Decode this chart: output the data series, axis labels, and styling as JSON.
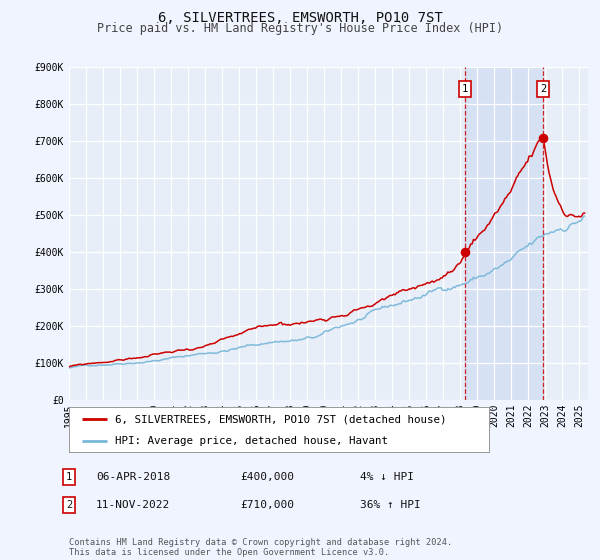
{
  "title": "6, SILVERTREES, EMSWORTH, PO10 7ST",
  "subtitle": "Price paid vs. HM Land Registry's House Price Index (HPI)",
  "ylim": [
    0,
    900000
  ],
  "yticks": [
    0,
    100000,
    200000,
    300000,
    400000,
    500000,
    600000,
    700000,
    800000,
    900000
  ],
  "ytick_labels": [
    "£0",
    "£100K",
    "£200K",
    "£300K",
    "£400K",
    "£500K",
    "£600K",
    "£700K",
    "£800K",
    "£900K"
  ],
  "xlim_start": 1995.0,
  "xlim_end": 2025.5,
  "xticks": [
    1995,
    1996,
    1997,
    1998,
    1999,
    2000,
    2001,
    2002,
    2003,
    2004,
    2005,
    2006,
    2007,
    2008,
    2009,
    2010,
    2011,
    2012,
    2013,
    2014,
    2015,
    2016,
    2017,
    2018,
    2019,
    2020,
    2021,
    2022,
    2023,
    2024,
    2025
  ],
  "hpi_color": "#7ab8d9",
  "price_color": "#cc0000",
  "fig_bg_color": "#f0f4ff",
  "plot_bg_color": "#e8eef8",
  "grid_color": "#ffffff",
  "sale1_year": 2018.27,
  "sale1_price": 400000,
  "sale2_year": 2022.87,
  "sale2_price": 710000,
  "legend_label_price": "6, SILVERTREES, EMSWORTH, PO10 7ST (detached house)",
  "legend_label_hpi": "HPI: Average price, detached house, Havant",
  "annotation1_date": "06-APR-2018",
  "annotation1_price": "£400,000",
  "annotation1_pct": "4% ↓ HPI",
  "annotation2_date": "11-NOV-2022",
  "annotation2_price": "£710,000",
  "annotation2_pct": "36% ↑ HPI",
  "footer": "Contains HM Land Registry data © Crown copyright and database right 2024.\nThis data is licensed under the Open Government Licence v3.0.",
  "title_fontsize": 10,
  "subtitle_fontsize": 8.5,
  "tick_fontsize": 7,
  "legend_fontsize": 7.8,
  "annotation_fontsize": 8
}
